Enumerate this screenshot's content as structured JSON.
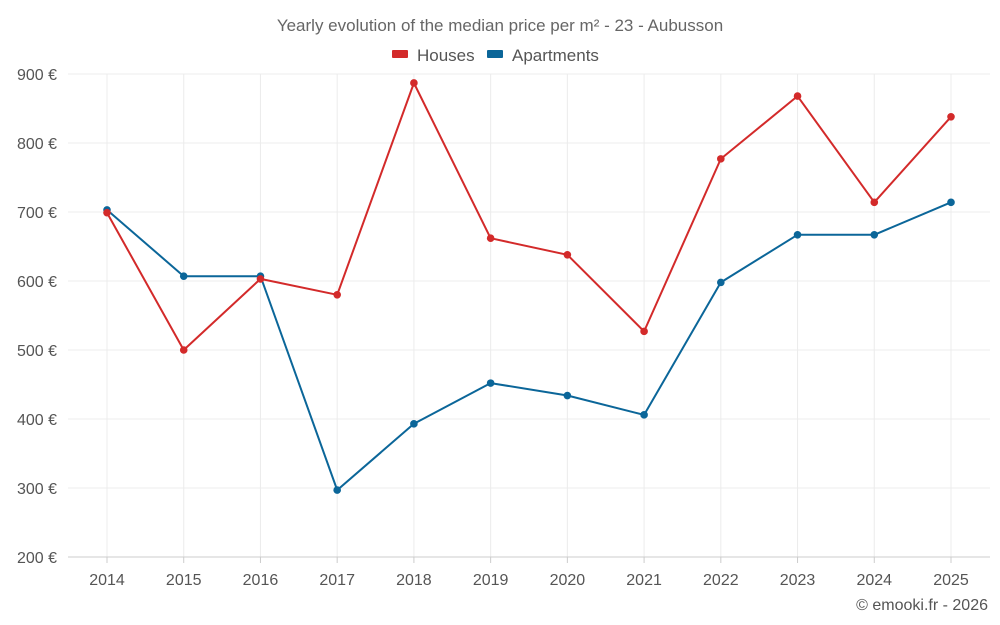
{
  "chart_data": {
    "type": "line",
    "title": "Yearly evolution of the median price per m² - 23 - Aubusson",
    "categories": [
      "2014",
      "2015",
      "2016",
      "2017",
      "2018",
      "2019",
      "2020",
      "2021",
      "2022",
      "2023",
      "2024",
      "2025"
    ],
    "series": [
      {
        "name": "Houses",
        "color": "#d32a2a",
        "values": [
          699,
          500,
          603,
          580,
          887,
          662,
          638,
          527,
          777,
          868,
          714,
          838
        ]
      },
      {
        "name": "Apartments",
        "color": "#0b6699",
        "values": [
          703,
          607,
          607,
          297,
          393,
          452,
          434,
          406,
          598,
          667,
          667,
          714
        ]
      }
    ],
    "ylim": [
      200,
      900
    ],
    "yticks": [
      "200 €",
      "300 €",
      "400 €",
      "500 €",
      "600 €",
      "700 €",
      "800 €",
      "900 €"
    ],
    "ytick_values": [
      200,
      300,
      400,
      500,
      600,
      700,
      800,
      900
    ],
    "xlabel": "",
    "ylabel": "",
    "grid": true,
    "legend_position": "top-center"
  },
  "credit": "© emooki.fr - 2026"
}
